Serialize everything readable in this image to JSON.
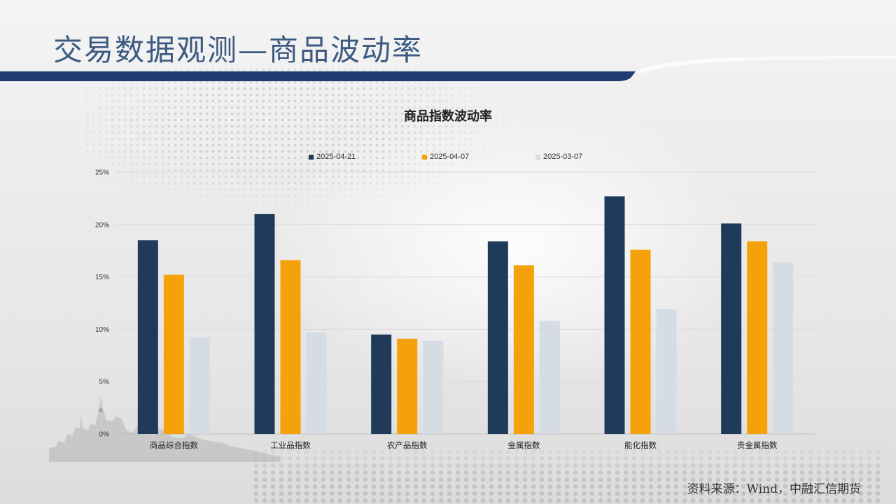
{
  "page": {
    "title": "交易数据观测—商品波动率",
    "source": "资料来源：Wind，中融汇信期货"
  },
  "colors": {
    "title_text": "#3d5a80",
    "header_band": "#1e3a6e",
    "series": [
      "#1f3a5a",
      "#f5a10a",
      "#d5dce4"
    ]
  },
  "chart_data": {
    "type": "bar",
    "title": "商品指数波动率",
    "categories": [
      "商品综合指数",
      "工业品指数",
      "农产品指数",
      "金属指数",
      "能化指数",
      "贵金属指数"
    ],
    "series": [
      {
        "name": "2025-04-21",
        "values": [
          18.5,
          21.0,
          9.5,
          18.4,
          22.7,
          20.1
        ]
      },
      {
        "name": "2025-04-07",
        "values": [
          15.2,
          16.6,
          9.1,
          16.1,
          17.6,
          18.4
        ]
      },
      {
        "name": "2025-03-07",
        "values": [
          9.2,
          9.7,
          8.9,
          10.8,
          11.9,
          16.4
        ]
      }
    ],
    "y_ticks": [
      "0%",
      "5%",
      "10%",
      "15%",
      "20%",
      "25%"
    ],
    "ylim": [
      0,
      25
    ],
    "ylabel": "",
    "xlabel": "",
    "grid": true,
    "legend_position": "top"
  }
}
